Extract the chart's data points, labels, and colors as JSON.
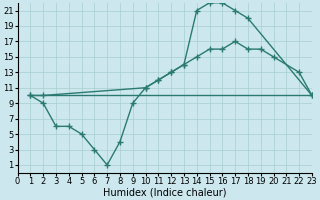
{
  "bg_color": "#cce8ee",
  "grid_color": "#a8cece",
  "line_color": "#2a7a72",
  "line_width": 1.0,
  "marker": "+",
  "marker_size": 4,
  "marker_ew": 1.0,
  "xlim": [
    0,
    23
  ],
  "ylim": [
    0,
    22
  ],
  "xticks": [
    0,
    1,
    2,
    3,
    4,
    5,
    6,
    7,
    8,
    9,
    10,
    11,
    12,
    13,
    14,
    15,
    16,
    17,
    18,
    19,
    20,
    21,
    22,
    23
  ],
  "yticks": [
    1,
    3,
    5,
    7,
    9,
    11,
    13,
    15,
    17,
    19,
    21
  ],
  "xlabel": "Humidex (Indice chaleur)",
  "xlabel_fontsize": 7,
  "tick_fontsize": 6,
  "line1_x": [
    1,
    2,
    3,
    4,
    5,
    6,
    7,
    8,
    9,
    10,
    11,
    12,
    13,
    14,
    15,
    16,
    17,
    18,
    23
  ],
  "line1_y": [
    10,
    9,
    6,
    6,
    5,
    3,
    1,
    4,
    9,
    11,
    12,
    13,
    14,
    21,
    22,
    22,
    21,
    20,
    10
  ],
  "line2_x": [
    1,
    2,
    10,
    11,
    12,
    13,
    14,
    15,
    16,
    17,
    18,
    19,
    20,
    22,
    23
  ],
  "line2_y": [
    10,
    10,
    11,
    12,
    13,
    14,
    15,
    16,
    16,
    17,
    16,
    16,
    15,
    13,
    10
  ],
  "line3_x": [
    1,
    23
  ],
  "line3_y": [
    10,
    10
  ]
}
